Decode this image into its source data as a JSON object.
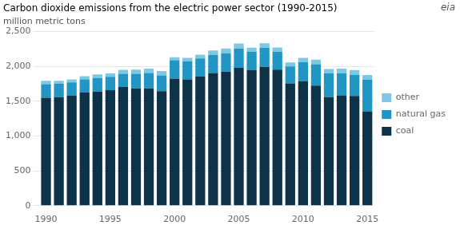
{
  "chart_data": {
    "type": "bar",
    "stacked": true,
    "title": "Carbon dioxide emissions from the electric power sector (1990-2015)",
    "subtitle": "million metric tons",
    "annotations": [
      "eia"
    ],
    "categories": [
      "1990",
      null,
      null,
      null,
      null,
      "1995",
      null,
      null,
      null,
      null,
      "2000",
      null,
      null,
      null,
      null,
      "2005",
      null,
      null,
      null,
      null,
      "2010",
      null,
      null,
      null,
      null,
      "2015"
    ],
    "series": [
      {
        "name": "coal",
        "color": "#0d3349",
        "values": [
          1550,
          1555,
          1580,
          1625,
          1640,
          1660,
          1705,
          1685,
          1685,
          1645,
          1825,
          1815,
          1855,
          1905,
          1925,
          1980,
          1945,
          1995,
          1955,
          1755,
          1785,
          1725,
          1555,
          1585,
          1575,
          1355
        ]
      },
      {
        "name": "natural gas",
        "color": "#2196c4",
        "values": [
          195,
          195,
          190,
          190,
          195,
          190,
          190,
          210,
          220,
          225,
          265,
          260,
          260,
          260,
          260,
          275,
          265,
          270,
          255,
          245,
          275,
          305,
          345,
          315,
          305,
          455
        ]
      },
      {
        "name": "other",
        "color": "#7ec8e3",
        "values": [
          50,
          45,
          45,
          45,
          50,
          50,
          55,
          58,
          63,
          63,
          43,
          48,
          53,
          63,
          73,
          73,
          58,
          68,
          63,
          58,
          63,
          68,
          63,
          68,
          68,
          68
        ]
      }
    ],
    "ylim": [
      0,
      2500
    ],
    "yticks": [
      0,
      500,
      {
        "value": 1000,
        "label": "1,000"
      },
      {
        "value": 1500,
        "label": "1,500"
      },
      {
        "value": 2000,
        "label": "2,000"
      },
      {
        "value": 2500,
        "label": "2,500"
      }
    ],
    "grid": "y",
    "legend": "right"
  }
}
